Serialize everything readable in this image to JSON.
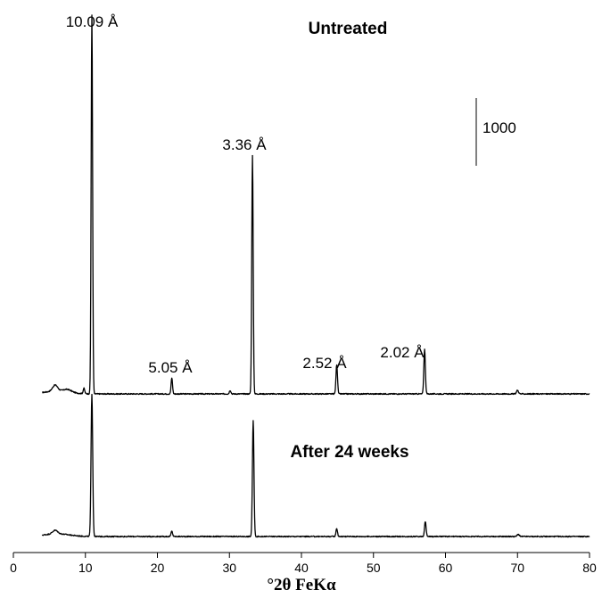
{
  "chart_data": {
    "type": "line",
    "xlabel": "°2θ  FeKα",
    "xlim": [
      0,
      80
    ],
    "xticks": [
      0,
      10,
      20,
      30,
      40,
      50,
      60,
      70,
      80
    ],
    "x_start": 4,
    "x_end": 80,
    "scale_bar_label": "1000",
    "scale_bar_counts": 1000,
    "ylim": [
      0,
      4600
    ],
    "series": [
      {
        "name": "Untreated",
        "baseline": 100,
        "noise": 12,
        "peaks": [
          {
            "x": 5.8,
            "height": 70,
            "width": 0.5
          },
          {
            "x": 7.5,
            "height": 30,
            "width": 0.8
          },
          {
            "x": 9.8,
            "height": 60,
            "width": 0.15
          },
          {
            "x": 10.9,
            "height": 4250,
            "width": 0.14,
            "label": "10.09 Å"
          },
          {
            "x": 22.0,
            "height": 180,
            "width": 0.14,
            "label": "5.05 Å"
          },
          {
            "x": 30.1,
            "height": 40,
            "width": 0.15
          },
          {
            "x": 33.2,
            "height": 2680,
            "width": 0.14,
            "label": "3.36 Å"
          },
          {
            "x": 44.9,
            "height": 330,
            "width": 0.15,
            "label": "2.52 Å"
          },
          {
            "x": 57.1,
            "height": 500,
            "width": 0.15,
            "label": "2.02 Å"
          },
          {
            "x": 70.0,
            "height": 40,
            "width": 0.2
          }
        ]
      },
      {
        "name": "After 24 weeks",
        "baseline": 100,
        "noise": 12,
        "peaks": [
          {
            "x": 5.8,
            "height": 40,
            "width": 0.5
          },
          {
            "x": 10.9,
            "height": 1600,
            "width": 0.16
          },
          {
            "x": 22.0,
            "height": 60,
            "width": 0.15
          },
          {
            "x": 33.3,
            "height": 1300,
            "width": 0.15
          },
          {
            "x": 44.9,
            "height": 90,
            "width": 0.15
          },
          {
            "x": 57.2,
            "height": 170,
            "width": 0.15
          },
          {
            "x": 70.1,
            "height": 25,
            "width": 0.2
          }
        ]
      }
    ]
  }
}
